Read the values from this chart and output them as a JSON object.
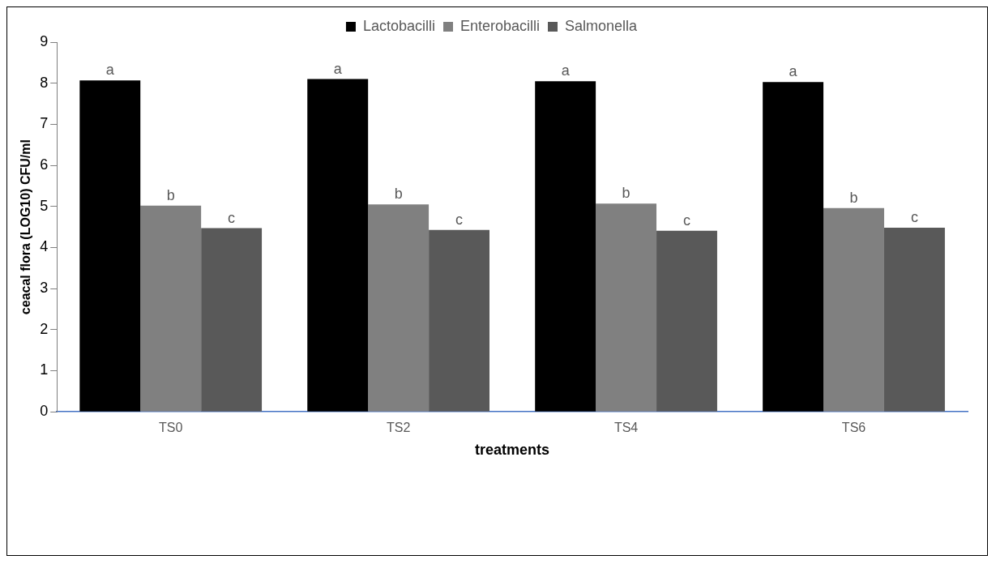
{
  "chart_data": {
    "type": "bar",
    "xlabel": "treatments",
    "ylabel": "ceacal flora (LOG10) CFU/ml",
    "categories": [
      "TS0",
      "TS2",
      "TS4",
      "TS6"
    ],
    "series": [
      {
        "name": "Lactobacilli",
        "color": "#000000",
        "values": [
          8.07,
          8.1,
          8.05,
          8.03
        ],
        "value_labels": [
          "a",
          "a",
          "a",
          "a"
        ]
      },
      {
        "name": "Enterobacilli",
        "color": "#808080",
        "values": [
          5.02,
          5.05,
          5.07,
          4.96
        ],
        "value_labels": [
          "b",
          "b",
          "b",
          "b"
        ]
      },
      {
        "name": "Salmonella",
        "color": "#595959",
        "values": [
          4.47,
          4.43,
          4.41,
          4.48
        ],
        "value_labels": [
          "c",
          "c",
          "c",
          "c"
        ]
      }
    ],
    "ylim": [
      0,
      9
    ],
    "yticks": [
      0,
      1,
      2,
      3,
      4,
      5,
      6,
      7,
      8,
      9
    ],
    "grid": false,
    "legend": "top"
  }
}
